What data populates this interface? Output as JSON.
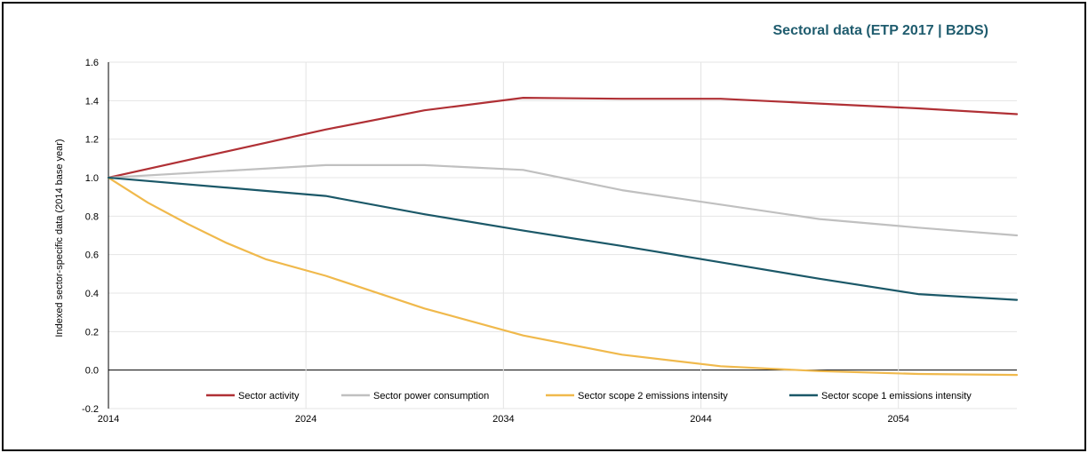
{
  "chart_data": {
    "type": "line",
    "title": "Sectoral data (ETP 2017 | B2DS)",
    "xlabel": "",
    "ylabel": "Indexed sector-specific data (2014 base year)",
    "xlim": [
      2014,
      2060
    ],
    "ylim": [
      -0.2,
      1.6
    ],
    "yticks": [
      -0.2,
      0.0,
      0.2,
      0.4,
      0.6,
      0.8,
      1.0,
      1.2,
      1.4,
      1.6
    ],
    "ytick_labels": [
      "-0.2",
      "0.0",
      "0.2",
      "0.4",
      "0.6",
      "0.8",
      "1.0",
      "1.2",
      "1.4",
      "1.6"
    ],
    "xticks": [
      2014,
      2024,
      2034,
      2044,
      2054
    ],
    "xtick_labels": [
      "2014",
      "2024",
      "2034",
      "2044",
      "2054"
    ],
    "grid": true,
    "legend": "bottom",
    "series": [
      {
        "name": "Sector activity",
        "color": "#b03035",
        "points": [
          [
            2014,
            1.0
          ],
          [
            2025,
            1.25
          ],
          [
            2030,
            1.35
          ],
          [
            2035,
            1.415
          ],
          [
            2040,
            1.41
          ],
          [
            2045,
            1.41
          ],
          [
            2050,
            1.385
          ],
          [
            2055,
            1.36
          ],
          [
            2060,
            1.33
          ]
        ]
      },
      {
        "name": "Sector power consumption",
        "color": "#c0c0c0",
        "points": [
          [
            2014,
            1.0
          ],
          [
            2025,
            1.065
          ],
          [
            2030,
            1.065
          ],
          [
            2035,
            1.04
          ],
          [
            2040,
            0.935
          ],
          [
            2045,
            0.86
          ],
          [
            2050,
            0.785
          ],
          [
            2055,
            0.74
          ],
          [
            2060,
            0.7
          ]
        ]
      },
      {
        "name": "Sector scope 2 emissions intensity",
        "color": "#f0b94c",
        "points": [
          [
            2014,
            1.0
          ],
          [
            2016,
            0.87
          ],
          [
            2018,
            0.76
          ],
          [
            2020,
            0.66
          ],
          [
            2022,
            0.575
          ],
          [
            2025,
            0.49
          ],
          [
            2030,
            0.32
          ],
          [
            2035,
            0.18
          ],
          [
            2040,
            0.08
          ],
          [
            2045,
            0.02
          ],
          [
            2050,
            -0.005
          ],
          [
            2055,
            -0.02
          ],
          [
            2060,
            -0.025
          ]
        ]
      },
      {
        "name": "Sector scope 1 emissions intensity",
        "color": "#1b5868",
        "points": [
          [
            2014,
            1.0
          ],
          [
            2025,
            0.905
          ],
          [
            2030,
            0.81
          ],
          [
            2035,
            0.725
          ],
          [
            2040,
            0.645
          ],
          [
            2045,
            0.56
          ],
          [
            2050,
            0.475
          ],
          [
            2055,
            0.395
          ],
          [
            2060,
            0.365
          ]
        ]
      }
    ]
  }
}
